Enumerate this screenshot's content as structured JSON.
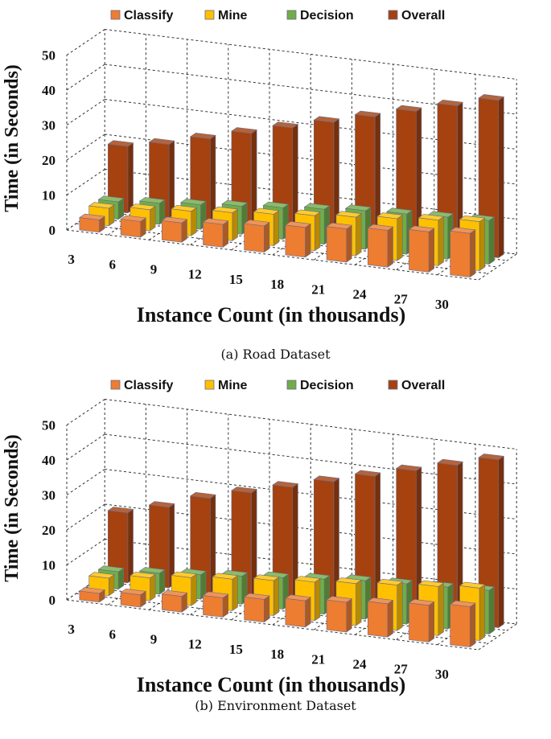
{
  "chart_data": [
    {
      "type": "bar",
      "subtype": "3d-clustered-bar",
      "caption": "(a) Road Dataset",
      "xlabel": "Instance Count (in thousands)",
      "ylabel": "Time (in Seconds)",
      "categories": [
        "3",
        "6",
        "9",
        "12",
        "15",
        "18",
        "21",
        "24",
        "27",
        "30"
      ],
      "ylim": [
        0,
        50
      ],
      "yticks": [
        "0",
        "10",
        "20",
        "30",
        "40",
        "50"
      ],
      "grid": true,
      "legend_position": "top",
      "series": [
        {
          "name": "Classify",
          "color": "#ED7D31",
          "values": [
            3.5,
            4.5,
            5.5,
            6.5,
            7.5,
            8.5,
            9.5,
            10.5,
            11.5,
            12.5
          ]
        },
        {
          "name": "Mine",
          "color": "#FFC000",
          "values": [
            5,
            6,
            7,
            8,
            9,
            10,
            11,
            12,
            13,
            14
          ]
        },
        {
          "name": "Decision",
          "color": "#70AD47",
          "values": [
            5,
            6,
            7,
            8,
            9,
            10,
            11,
            11.5,
            12,
            12.5
          ]
        },
        {
          "name": "Overall",
          "color": "#A5420F",
          "values": [
            19,
            21,
            24,
            27,
            30,
            33,
            36,
            39,
            42,
            45
          ]
        }
      ]
    },
    {
      "type": "bar",
      "subtype": "3d-clustered-bar",
      "caption": "(b) Environment Dataset",
      "xlabel": "Instance Count (in thousands)",
      "ylabel": "Time (in Seconds)",
      "categories": [
        "3",
        "6",
        "9",
        "12",
        "15",
        "18",
        "21",
        "24",
        "27",
        "30"
      ],
      "ylim": [
        0,
        50
      ],
      "yticks": [
        "0",
        "10",
        "20",
        "30",
        "40",
        "50"
      ],
      "grid": true,
      "legend_position": "top",
      "series": [
        {
          "name": "Classify",
          "color": "#ED7D31",
          "values": [
            2.5,
            3.5,
            4.5,
            5.5,
            6.5,
            7.5,
            8.5,
            9.5,
            10.5,
            11.5
          ]
        },
        {
          "name": "Mine",
          "color": "#FFC000",
          "values": [
            5,
            6.5,
            8,
            9,
            10,
            11,
            12,
            13,
            14,
            15
          ]
        },
        {
          "name": "Decision",
          "color": "#70AD47",
          "values": [
            5,
            6,
            7,
            8,
            9,
            10,
            11,
            11.5,
            12,
            12.5
          ]
        },
        {
          "name": "Overall",
          "color": "#A5420F",
          "values": [
            20,
            23,
            27,
            30,
            33,
            36,
            39,
            42,
            45,
            48
          ]
        }
      ]
    }
  ]
}
